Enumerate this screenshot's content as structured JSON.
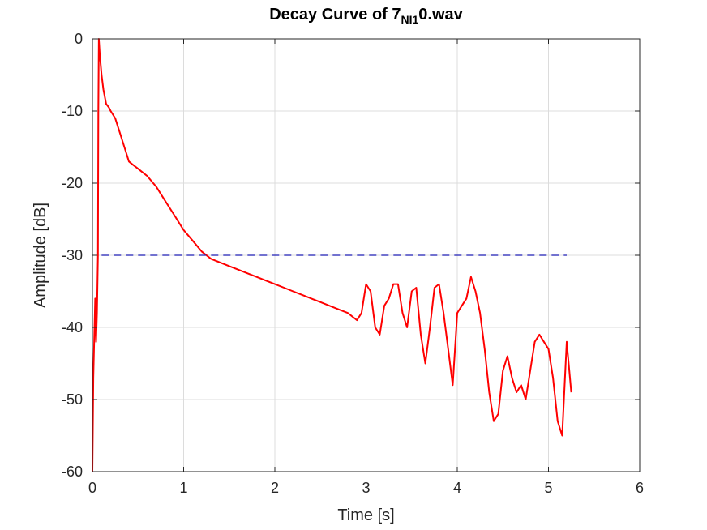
{
  "chart_data": {
    "type": "line",
    "title": "Decay Curve of 7",
    "title_subscript": "NI1",
    "title_suffix": "0.wav",
    "xlabel": "Time [s]",
    "ylabel": "Amplitude [dB]",
    "xlim": [
      0,
      6
    ],
    "ylim": [
      -60,
      0
    ],
    "xticks": [
      0,
      1,
      2,
      3,
      4,
      5,
      6
    ],
    "yticks": [
      0,
      -10,
      -20,
      -30,
      -40,
      -50,
      -60
    ],
    "grid": true,
    "series": [
      {
        "color": "#ff0000",
        "style": "solid",
        "x": [
          0.0,
          0.01,
          0.03,
          0.04,
          0.05,
          0.06,
          0.065,
          0.07,
          0.08,
          0.1,
          0.12,
          0.15,
          0.18,
          0.2,
          0.25,
          0.3,
          0.35,
          0.4,
          0.45,
          0.5,
          0.55,
          0.6,
          0.7,
          0.8,
          0.9,
          1.0,
          1.1,
          1.2,
          1.3,
          1.4,
          1.5,
          1.6,
          1.7,
          1.8,
          1.9,
          2.0,
          2.1,
          2.2,
          2.3,
          2.4,
          2.5,
          2.6,
          2.7,
          2.8,
          2.9,
          2.95,
          3.0,
          3.05,
          3.1,
          3.15,
          3.2,
          3.25,
          3.3,
          3.35,
          3.4,
          3.45,
          3.5,
          3.55,
          3.6,
          3.65,
          3.7,
          3.75,
          3.8,
          3.85,
          3.9,
          3.95,
          4.0,
          4.05,
          4.1,
          4.15,
          4.2,
          4.25,
          4.3,
          4.35,
          4.4,
          4.45,
          4.5,
          4.55,
          4.6,
          4.65,
          4.7,
          4.75,
          4.8,
          4.85,
          4.9,
          4.95,
          5.0,
          5.05,
          5.1,
          5.15,
          5.2,
          5.25
        ],
        "y": [
          -60,
          -47,
          -36,
          -42,
          -38,
          -30,
          -10,
          0,
          -2,
          -5,
          -7,
          -9,
          -9.5,
          -10,
          -11,
          -13,
          -15,
          -17,
          -17.5,
          -18,
          -18.5,
          -19,
          -20.5,
          -22.5,
          -24.5,
          -26.5,
          -28,
          -29.5,
          -30.5,
          -31,
          -31.5,
          -32,
          -32.5,
          -33,
          -33.5,
          -34,
          -34.5,
          -35,
          -35.5,
          -36,
          -36.5,
          -37,
          -37.5,
          -38,
          -39,
          -38,
          -34,
          -35,
          -40,
          -41,
          -37,
          -36,
          -34,
          -34,
          -38,
          -40,
          -35,
          -34.5,
          -41,
          -45,
          -40,
          -34.5,
          -34,
          -38,
          -43,
          -48,
          -38,
          -37,
          -36,
          -33,
          -35,
          -38,
          -43,
          -49,
          -53,
          -52,
          -46,
          -44,
          -47,
          -49,
          -48,
          -50,
          -46,
          -42,
          -41,
          -42,
          -43,
          -47,
          -53,
          -55,
          -42,
          -49
        ]
      },
      {
        "color": "#1f1fb4",
        "style": "dashed",
        "x": [
          0.1,
          5.2
        ],
        "y": [
          -30,
          -30
        ]
      }
    ]
  }
}
